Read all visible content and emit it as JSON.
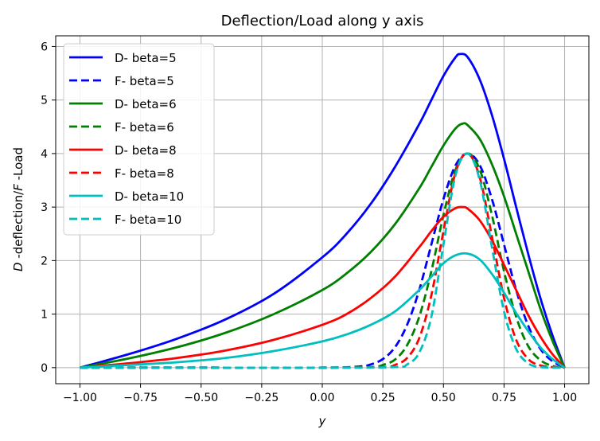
{
  "chart_data": {
    "type": "line",
    "title": "Deflection/Load along y axis",
    "xlabel": "y",
    "ylabel_parts": [
      {
        "text": "D",
        "italic": true
      },
      {
        "text": " -deflection/",
        "italic": false
      },
      {
        "text": "F",
        "italic": true
      },
      {
        "text": " -Load",
        "italic": false
      }
    ],
    "xlim": [
      -1.1,
      1.1
    ],
    "ylim": [
      -0.3,
      6.2
    ],
    "xticks": [
      -1.0,
      -0.75,
      -0.5,
      -0.25,
      0.0,
      0.25,
      0.5,
      0.75,
      1.0
    ],
    "xtick_labels": [
      "−1.00",
      "−0.75",
      "−0.50",
      "−0.25",
      "0.00",
      "0.25",
      "0.50",
      "0.75",
      "1.00"
    ],
    "yticks": [
      0,
      1,
      2,
      3,
      4,
      5,
      6
    ],
    "ytick_labels": [
      "0",
      "1",
      "2",
      "3",
      "4",
      "5",
      "6"
    ],
    "grid": true,
    "legend_position": "top-left",
    "series": [
      {
        "name": "D- beta=5",
        "color": "#0000ff",
        "dash": "solid",
        "x": [
          -1.0,
          -0.8,
          -0.6,
          -0.4,
          -0.2,
          0.0,
          0.1,
          0.2,
          0.3,
          0.4,
          0.45,
          0.5,
          0.55,
          0.57,
          0.6,
          0.65,
          0.7,
          0.75,
          0.8,
          0.85,
          0.9,
          0.95,
          1.0
        ],
        "y": [
          0.0,
          0.25,
          0.54,
          0.9,
          1.38,
          2.06,
          2.5,
          3.06,
          3.75,
          4.55,
          5.0,
          5.45,
          5.8,
          5.86,
          5.8,
          5.38,
          4.72,
          3.9,
          3.0,
          2.12,
          1.3,
          0.6,
          0.0
        ]
      },
      {
        "name": "F- beta=5",
        "color": "#0000ff",
        "dash": "dashed",
        "x": [
          -1.0,
          -0.5,
          0.0,
          0.15,
          0.2,
          0.25,
          0.3,
          0.35,
          0.4,
          0.45,
          0.5,
          0.55,
          0.6,
          0.65,
          0.7,
          0.75,
          0.8,
          0.85,
          0.9,
          0.95,
          1.0
        ],
        "y": [
          0.0,
          0.0,
          0.0,
          0.02,
          0.06,
          0.16,
          0.38,
          0.8,
          1.45,
          2.3,
          3.15,
          3.78,
          4.0,
          3.78,
          3.15,
          2.3,
          1.45,
          0.78,
          0.35,
          0.12,
          0.0
        ]
      },
      {
        "name": "D- beta=6",
        "color": "#008000",
        "dash": "solid",
        "x": [
          -1.0,
          -0.8,
          -0.6,
          -0.4,
          -0.2,
          0.0,
          0.1,
          0.2,
          0.3,
          0.4,
          0.45,
          0.5,
          0.55,
          0.58,
          0.6,
          0.65,
          0.7,
          0.75,
          0.8,
          0.85,
          0.9,
          0.95,
          1.0
        ],
        "y": [
          0.0,
          0.17,
          0.38,
          0.65,
          1.0,
          1.45,
          1.76,
          2.16,
          2.68,
          3.35,
          3.75,
          4.15,
          4.47,
          4.56,
          4.53,
          4.27,
          3.8,
          3.2,
          2.5,
          1.8,
          1.1,
          0.5,
          0.0
        ]
      },
      {
        "name": "F- beta=6",
        "color": "#008000",
        "dash": "dashed",
        "x": [
          -1.0,
          -0.5,
          0.0,
          0.2,
          0.25,
          0.3,
          0.35,
          0.4,
          0.45,
          0.5,
          0.55,
          0.6,
          0.65,
          0.7,
          0.75,
          0.8,
          0.85,
          0.9,
          0.95,
          1.0
        ],
        "y": [
          0.0,
          0.0,
          0.0,
          0.01,
          0.05,
          0.15,
          0.42,
          0.95,
          1.8,
          2.85,
          3.7,
          4.0,
          3.7,
          2.85,
          1.8,
          0.95,
          0.4,
          0.14,
          0.03,
          0.0
        ]
      },
      {
        "name": "D- beta=8",
        "color": "#ff0000",
        "dash": "solid",
        "x": [
          -1.0,
          -0.8,
          -0.6,
          -0.4,
          -0.2,
          0.0,
          0.1,
          0.2,
          0.3,
          0.4,
          0.45,
          0.5,
          0.55,
          0.58,
          0.6,
          0.65,
          0.7,
          0.75,
          0.8,
          0.85,
          0.9,
          0.95,
          1.0
        ],
        "y": [
          0.0,
          0.08,
          0.18,
          0.32,
          0.52,
          0.8,
          1.0,
          1.3,
          1.7,
          2.25,
          2.55,
          2.82,
          2.98,
          3.0,
          2.97,
          2.75,
          2.38,
          1.92,
          1.45,
          0.98,
          0.58,
          0.25,
          0.0
        ]
      },
      {
        "name": "F- beta=8",
        "color": "#ff0000",
        "dash": "dashed",
        "x": [
          -1.0,
          -0.5,
          0.0,
          0.25,
          0.3,
          0.35,
          0.4,
          0.45,
          0.5,
          0.55,
          0.6,
          0.65,
          0.7,
          0.75,
          0.8,
          0.85,
          0.9,
          0.95,
          1.0
        ],
        "y": [
          0.0,
          0.0,
          0.0,
          0.01,
          0.05,
          0.18,
          0.55,
          1.35,
          2.55,
          3.65,
          4.0,
          3.55,
          2.45,
          1.3,
          0.52,
          0.16,
          0.04,
          0.01,
          0.0
        ]
      },
      {
        "name": "D- beta=10",
        "color": "#00bfbf",
        "dash": "solid",
        "x": [
          -1.0,
          -0.8,
          -0.6,
          -0.4,
          -0.2,
          0.0,
          0.1,
          0.2,
          0.3,
          0.4,
          0.45,
          0.5,
          0.55,
          0.6,
          0.65,
          0.7,
          0.75,
          0.8,
          0.85,
          0.9,
          0.95,
          1.0
        ],
        "y": [
          0.0,
          0.05,
          0.1,
          0.18,
          0.31,
          0.49,
          0.62,
          0.8,
          1.05,
          1.45,
          1.7,
          1.95,
          2.1,
          2.13,
          2.02,
          1.75,
          1.4,
          1.02,
          0.68,
          0.38,
          0.16,
          0.0
        ]
      },
      {
        "name": "F- beta=10",
        "color": "#00bfbf",
        "dash": "dashed",
        "x": [
          -1.0,
          -0.5,
          0.0,
          0.3,
          0.35,
          0.4,
          0.45,
          0.5,
          0.55,
          0.6,
          0.65,
          0.7,
          0.75,
          0.8,
          0.85,
          0.9,
          1.0
        ],
        "y": [
          0.0,
          0.0,
          0.0,
          0.01,
          0.06,
          0.28,
          0.95,
          2.3,
          3.6,
          4.0,
          3.5,
          2.25,
          1.05,
          0.35,
          0.08,
          0.01,
          0.0
        ]
      }
    ]
  }
}
